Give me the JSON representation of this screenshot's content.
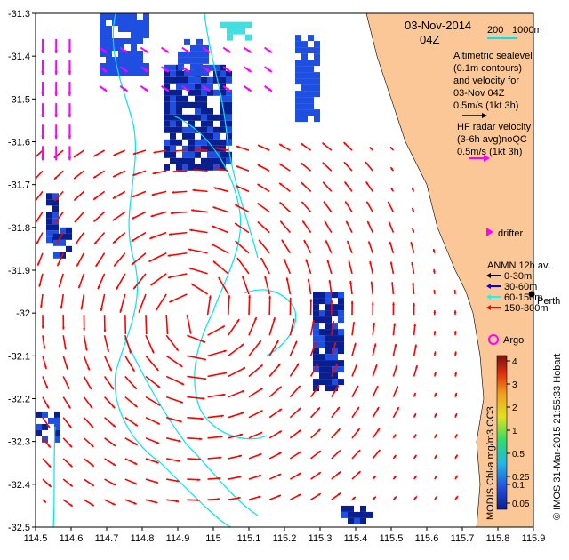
{
  "header": {
    "date": "03-Nov-2014",
    "time": "04Z"
  },
  "scale_bar": {
    "start": "200",
    "end": "1000m"
  },
  "legend": {
    "sealevel_lines": [
      "Altimetric sealevel",
      "(0.1m contours)",
      "and velocity for",
      "03-Nov 04Z",
      "0.5m/s (1kt 3h)"
    ],
    "hf_lines": [
      "HF radar velocity",
      "(3-6h avg)noQC",
      "0.5m/s (1kt 3h)"
    ],
    "drifter": "drifter",
    "anmn_title": "ANMN 12h av.",
    "anmn_items": [
      {
        "label": "0-30m",
        "color": "#000000"
      },
      {
        "label": "30-60m",
        "color": "#0000ff"
      },
      {
        "label": "60-150m",
        "color": "#00ffff"
      },
      {
        "label": "150-300m",
        "color": "#ff0000"
      }
    ],
    "argo": "Argo",
    "perth": "Perth"
  },
  "colorbar": {
    "ticks": [
      "4",
      "3",
      "2",
      "1",
      "0.5",
      "0.25",
      "0.1",
      "0.05"
    ],
    "label": "MODIS Chl-a mg/m3 OC3"
  },
  "credit": "© IMOS 31-Mar-2015 21:55:33 Hobart",
  "colors": {
    "land": "#fcc797",
    "sealevel_arrow": "#ff0000",
    "hf_arrow": "#ff00ff",
    "contour": "#00e5ee",
    "chl_high": "#0a1f8f",
    "chl_mid": "#1f4fe0"
  },
  "chart_data": {
    "type": "map",
    "xticks": [
      "114.5",
      "114.6",
      "114.7",
      "114.8",
      "114.9",
      "115",
      "115.1",
      "115.2",
      "115.3",
      "115.4",
      "115.5",
      "115.6",
      "115.7",
      "115.8",
      "115.9"
    ],
    "yticks": [
      "-31.3",
      "-31.4",
      "-31.5",
      "-31.6",
      "-31.7",
      "-31.8",
      "-31.9",
      "-32",
      "-32.1",
      "-32.2",
      "-32.3",
      "-32.4",
      "-32.5"
    ],
    "xlim": [
      114.5,
      115.9
    ],
    "ylim": [
      -32.5,
      -31.3
    ],
    "eddy": {
      "center": [
        114.95,
        -32.0
      ]
    },
    "coast": [
      [
        115.43,
        -31.3
      ],
      [
        115.46,
        -31.4
      ],
      [
        115.5,
        -31.5
      ],
      [
        115.54,
        -31.6
      ],
      [
        115.6,
        -31.7
      ],
      [
        115.63,
        -31.8
      ],
      [
        115.68,
        -31.9
      ],
      [
        115.71,
        -31.95
      ],
      [
        115.73,
        -32.0
      ],
      [
        115.75,
        -32.1
      ],
      [
        115.76,
        -32.2
      ],
      [
        115.74,
        -32.3
      ],
      [
        115.75,
        -32.4
      ],
      [
        115.74,
        -32.5
      ]
    ],
    "chl_patches": [
      {
        "lon": [
          114.68,
          114.82
        ],
        "lat": [
          -31.44,
          -31.3
        ],
        "level": "mid"
      },
      {
        "lon": [
          114.86,
          115.05
        ],
        "lat": [
          -31.66,
          -31.42
        ],
        "level": "high"
      },
      {
        "lon": [
          114.9,
          114.98
        ],
        "lat": [
          -31.44,
          -31.36
        ],
        "level": "mid"
      },
      {
        "lon": [
          115.23,
          115.3
        ],
        "lat": [
          -31.55,
          -31.35
        ],
        "level": "mid"
      },
      {
        "lon": [
          115.02,
          115.1
        ],
        "lat": [
          -31.36,
          -31.32
        ],
        "level": "cyan"
      },
      {
        "lon": [
          114.53,
          114.56
        ],
        "lat": [
          -31.83,
          -31.72
        ],
        "level": "high"
      },
      {
        "lon": [
          114.55,
          114.6
        ],
        "lat": [
          -31.87,
          -31.8
        ],
        "level": "high"
      },
      {
        "lon": [
          114.5,
          114.56
        ],
        "lat": [
          -32.29,
          -32.23
        ],
        "level": "high"
      },
      {
        "lon": [
          115.28,
          115.36
        ],
        "lat": [
          -32.17,
          -31.95
        ],
        "level": "high"
      },
      {
        "lon": [
          115.36,
          115.44
        ],
        "lat": [
          -32.49,
          -32.45
        ],
        "level": "high"
      }
    ]
  }
}
